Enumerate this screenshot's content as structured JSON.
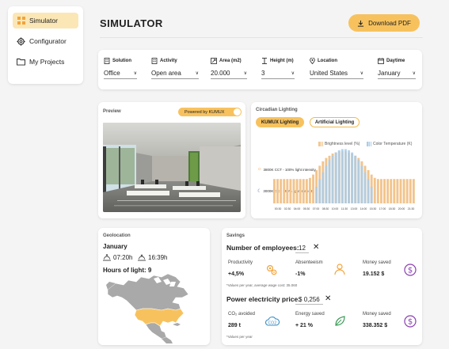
{
  "sidebar": {
    "items": [
      {
        "label": "Simulator",
        "icon": "grid-icon",
        "active": true
      },
      {
        "label": "Configurator",
        "icon": "gear-icon",
        "active": false
      },
      {
        "label": "My Projects",
        "icon": "folder-icon",
        "active": false
      }
    ]
  },
  "header": {
    "title": "SIMULATOR",
    "download_label": "Download PDF"
  },
  "filters": {
    "solution": {
      "label": "Solution",
      "value": "Office"
    },
    "activity": {
      "label": "Activity",
      "value": "Open area"
    },
    "area": {
      "label": "Area (m2)",
      "value": "20.000"
    },
    "height": {
      "label": "Height (m)",
      "value": "3"
    },
    "location": {
      "label": "Location",
      "value": "United States"
    },
    "daytime": {
      "label": "Daytime",
      "value": "January"
    }
  },
  "preview": {
    "label": "Preview",
    "toggle_label": "Powered by KUMUX",
    "toggle_on": true
  },
  "circadian": {
    "label": "Circadian Lighting",
    "chip_kumux": "KUMUX Lighting",
    "chip_artificial": "Artificial Lighting",
    "legend_brightness": "Brightness level (%)",
    "legend_color": "Color Temperature (K)",
    "cct_high": "3800K CCT - 100% light intensity",
    "cct_low": "3000K CCT - 50% light intensity",
    "x_ticks": [
      "00:30",
      "02:30",
      "04:00",
      "05:30",
      "07:00",
      "08:30",
      "10:00",
      "11:30",
      "13:00",
      "14:00",
      "15:30",
      "17:00",
      "18:30",
      "20:00",
      "21:30"
    ]
  },
  "chart_data": {
    "type": "bar",
    "title": "Circadian Lighting",
    "xlabel": "",
    "ylabel": "",
    "series": [
      {
        "name": "Brightness level (%)",
        "color": "#f2c48d",
        "values": [
          44,
          44,
          44,
          44,
          44,
          44,
          44,
          44,
          44,
          44,
          44,
          46,
          52,
          60,
          68,
          76,
          82,
          86,
          90,
          92,
          94,
          94,
          94,
          92,
          90,
          86,
          82,
          76,
          68,
          60,
          52,
          46,
          44,
          44,
          44,
          44,
          44,
          44,
          44,
          44,
          44,
          44,
          44,
          44
        ]
      },
      {
        "name": "Color Temperature (K)",
        "color": "#a9cdea",
        "values": [
          0,
          0,
          0,
          0,
          0,
          0,
          0,
          0,
          0,
          0,
          0,
          0,
          0,
          30,
          44,
          56,
          68,
          78,
          86,
          92,
          96,
          98,
          98,
          96,
          92,
          86,
          78,
          68,
          56,
          44,
          30,
          0,
          0,
          0,
          0,
          0,
          0,
          0,
          0,
          0,
          0,
          0,
          0,
          0
        ]
      }
    ],
    "ylim": [
      0,
      100
    ],
    "grid": false,
    "legend": "top-right"
  },
  "geo": {
    "label": "Geolocation",
    "month": "January",
    "sunrise": "07:20h",
    "sunset": "16:39h",
    "hours_of_light": "Hours of light: 9"
  },
  "savings": {
    "label": "Savings",
    "employees_label": "Number of employees:",
    "employees_value": "12",
    "price_label": "Power electricity price:",
    "price_currency": "$",
    "price_value": "0,256",
    "note1": "*Values per year, average wage cost: 35.060",
    "note2": "*Values per year",
    "metrics": [
      {
        "label": "Productivity",
        "value": "+4,5%",
        "icon": "gears-icon"
      },
      {
        "label": "Absenteeism",
        "value": "-1%",
        "icon": "person-icon"
      },
      {
        "label": "Money saved",
        "value": "19.152 $",
        "icon": "dollar-icon"
      },
      {
        "label": "CO₂ avoided",
        "value": "289 t",
        "icon": "co2-cloud-icon"
      },
      {
        "label": "Energy saved",
        "value": "+ 21 %",
        "icon": "leaf-icon"
      },
      {
        "label": "Money saved",
        "value": "338.352 $",
        "icon": "dollar-icon"
      }
    ]
  },
  "colors": {
    "accent": "#f7c25e",
    "accent_light": "#fbe7b6",
    "brightness_bar": "#f2c48d",
    "color_temp_bar": "#a9cdea",
    "icon_orange": "#f2a33a",
    "icon_purple": "#8a3fb0",
    "map_gray": "#a9a9a9",
    "map_highlight": "#f7c25e"
  }
}
